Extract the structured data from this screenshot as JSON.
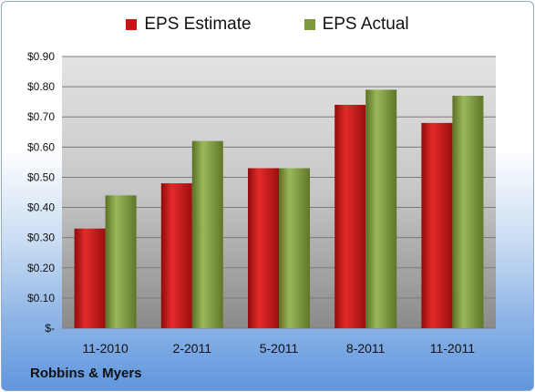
{
  "chart_data": {
    "type": "bar",
    "categories": [
      "11-2010",
      "2-2011",
      "5-2011",
      "8-2011",
      "11-2011"
    ],
    "series": [
      {
        "name": "EPS Estimate",
        "values": [
          0.33,
          0.48,
          0.53,
          0.74,
          0.68
        ],
        "color": "#c81414"
      },
      {
        "name": "EPS Actual",
        "values": [
          0.44,
          0.62,
          0.53,
          0.79,
          0.77
        ],
        "color": "#7e9a3a"
      }
    ],
    "ylim": [
      0,
      0.9
    ],
    "yticks": [
      {
        "value": 0.0,
        "label": "$-"
      },
      {
        "value": 0.1,
        "label": "$0.10"
      },
      {
        "value": 0.2,
        "label": "$0.20"
      },
      {
        "value": 0.3,
        "label": "$0.30"
      },
      {
        "value": 0.4,
        "label": "$0.40"
      },
      {
        "value": 0.5,
        "label": "$0.50"
      },
      {
        "value": 0.6,
        "label": "$0.60"
      },
      {
        "value": 0.7,
        "label": "$0.70"
      },
      {
        "value": 0.8,
        "label": "$0.80"
      },
      {
        "value": 0.9,
        "label": "$0.90"
      }
    ],
    "grid": true,
    "legend_position": "top"
  },
  "company": "Robbins & Myers"
}
